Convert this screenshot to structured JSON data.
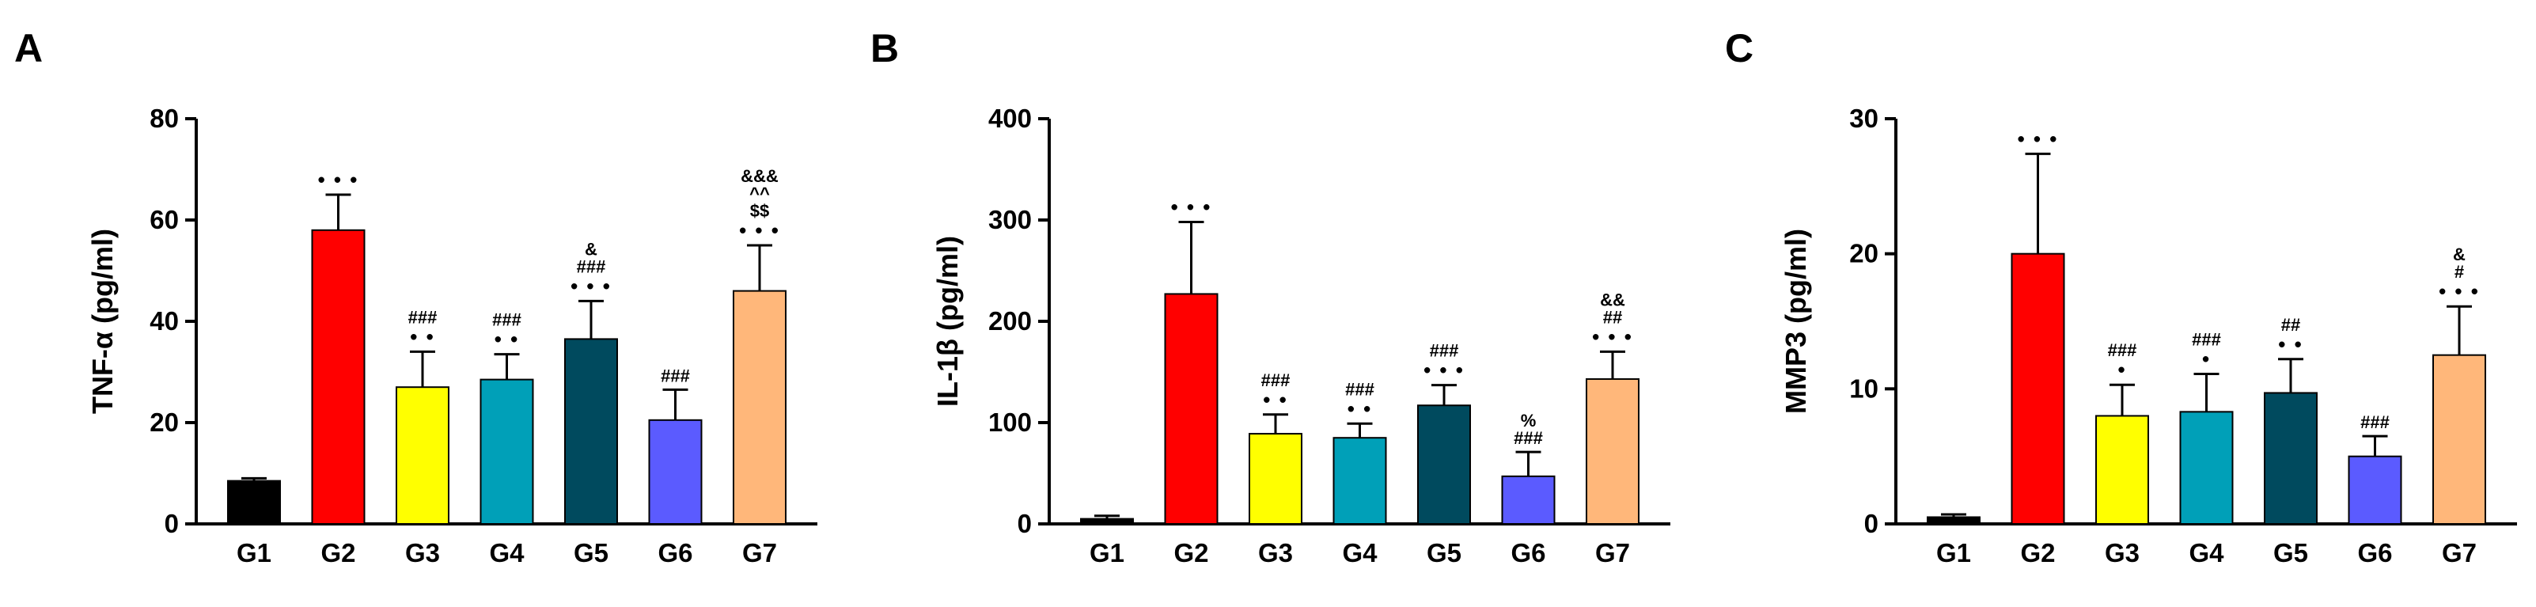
{
  "chart_data": [
    {
      "type": "bar",
      "panel": "A",
      "ylabel": "TNF-α (pg/ml)",
      "ylim": [
        0,
        80
      ],
      "yticks": [
        "0",
        "20",
        "40",
        "60",
        "80"
      ],
      "categories": [
        "G1",
        "G2",
        "G3",
        "G4",
        "G5",
        "G6",
        "G7"
      ],
      "values": [
        8.5,
        58,
        27,
        28.5,
        36.5,
        20.5,
        46
      ],
      "errors": [
        0.5,
        7,
        7,
        5,
        7.5,
        6,
        9
      ],
      "colors": [
        "#000000",
        "#ff0000",
        "#ffff00",
        "#00a0b8",
        "#004a5e",
        "#5b5bff",
        "#ffb77a"
      ],
      "annotations": [
        [],
        [
          "• • •"
        ],
        [
          "• •",
          "###"
        ],
        [
          "• •",
          "###"
        ],
        [
          "• • •",
          "###",
          "&"
        ],
        [
          "###"
        ],
        [
          "• • •",
          "$$",
          "^^",
          "&&&"
        ]
      ]
    },
    {
      "type": "bar",
      "panel": "B",
      "ylabel": "IL-1β (pg/ml)",
      "ylim": [
        0,
        400
      ],
      "yticks": [
        "0",
        "100",
        "200",
        "300",
        "400"
      ],
      "categories": [
        "G1",
        "G2",
        "G3",
        "G4",
        "G5",
        "G6",
        "G7"
      ],
      "values": [
        5,
        227,
        89,
        85,
        117,
        47,
        143
      ],
      "errors": [
        3,
        71,
        19,
        14,
        20,
        24,
        27
      ],
      "colors": [
        "#000000",
        "#ff0000",
        "#ffff00",
        "#00a0b8",
        "#004a5e",
        "#5b5bff",
        "#ffb77a"
      ],
      "annotations": [
        [],
        [
          "• • •"
        ],
        [
          "• •",
          "###"
        ],
        [
          "• •",
          "###"
        ],
        [
          "• • •",
          "###"
        ],
        [
          "###",
          "%"
        ],
        [
          "• • •",
          "##",
          "&&"
        ]
      ]
    },
    {
      "type": "bar",
      "panel": "C",
      "ylabel": "MMP3 (pg/ml)",
      "ylim": [
        0,
        30
      ],
      "yticks": [
        "0",
        "10",
        "20",
        "30"
      ],
      "categories": [
        "G1",
        "G2",
        "G3",
        "G4",
        "G5",
        "G6",
        "G7"
      ],
      "values": [
        0.5,
        20,
        8,
        8.3,
        9.7,
        5,
        12.5
      ],
      "errors": [
        0.2,
        7.4,
        2.3,
        2.8,
        2.5,
        1.5,
        3.6
      ],
      "colors": [
        "#000000",
        "#ff0000",
        "#ffff00",
        "#00a0b8",
        "#004a5e",
        "#5b5bff",
        "#ffb77a"
      ],
      "annotations": [
        [],
        [
          "• • •"
        ],
        [
          "•",
          "###"
        ],
        [
          "•",
          "###"
        ],
        [
          "• •",
          "##"
        ],
        [
          "###"
        ],
        [
          "• • •",
          "#",
          "&"
        ]
      ]
    }
  ]
}
